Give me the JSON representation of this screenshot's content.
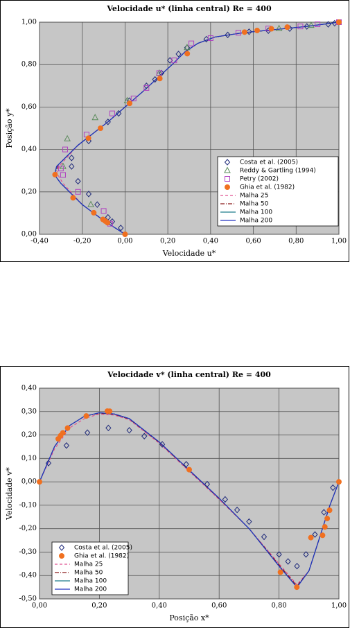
{
  "chart_data": [
    {
      "type": "scatter",
      "title": "Velocidade u* (linha central) Re = 400",
      "x_label": "Velocidade u*",
      "y_label": "Posição y*",
      "xlim": [
        -0.4,
        1.0
      ],
      "ylim": [
        0,
        1.0
      ],
      "grid": true,
      "legend": "lower right",
      "xticks": [
        {
          "value": -0.4,
          "label": "-0,40"
        },
        {
          "value": -0.2,
          "label": "-0,20"
        },
        {
          "value": 0,
          "label": "0,00"
        },
        {
          "value": 0.2,
          "label": "0,20"
        },
        {
          "value": 0.4,
          "label": "0,40"
        },
        {
          "value": 0.6,
          "label": "0,60"
        },
        {
          "value": 0.8,
          "label": "0,80"
        },
        {
          "value": 1.0,
          "label": "1,00"
        }
      ],
      "yticks": [
        {
          "value": 0,
          "label": "0,00"
        },
        {
          "value": 0.2,
          "label": "0,20"
        },
        {
          "value": 0.4,
          "label": "0,40"
        },
        {
          "value": 0.6,
          "label": "0,60"
        },
        {
          "value": 0.8,
          "label": "0,80"
        },
        {
          "value": 1.0,
          "label": "1,00"
        }
      ],
      "series": [
        {
          "name": "Costa et al. (2005)",
          "marker": "diamond",
          "color": "#1f2a7a",
          "x": [
            -0.02,
            -0.06,
            -0.08,
            -0.13,
            -0.17,
            -0.22,
            -0.25,
            -0.25,
            -0.17,
            -0.08,
            -0.03,
            0.02,
            0.1,
            0.14,
            0.17,
            0.21,
            0.25,
            0.29,
            0.38,
            0.48,
            0.58,
            0.67,
            0.77,
            0.85,
            0.95,
            0.98
          ],
          "values": [
            0.03,
            0.06,
            0.08,
            0.14,
            0.19,
            0.25,
            0.32,
            0.36,
            0.44,
            0.53,
            0.57,
            0.63,
            0.7,
            0.73,
            0.76,
            0.82,
            0.85,
            0.88,
            0.92,
            0.94,
            0.955,
            0.96,
            0.97,
            0.98,
            0.99,
            0.995
          ]
        },
        {
          "name": "Reddy & Gartling (1994)",
          "marker": "triangle",
          "color": "#5a8a5a",
          "x": [
            -0.16,
            -0.29,
            -0.27,
            -0.14,
            0.01,
            0.16,
            0.29,
            0.72,
            0.87
          ],
          "values": [
            0.14,
            0.32,
            0.45,
            0.55,
            0.63,
            0.76,
            0.88,
            0.97,
            0.985
          ]
        },
        {
          "name": "Petry (2002)",
          "marker": "square",
          "color": "#b040c0",
          "x": [
            -0.07,
            -0.1,
            -0.22,
            -0.29,
            -0.3,
            -0.28,
            -0.18,
            -0.06,
            0.04,
            0.1,
            0.16,
            0.23,
            0.31,
            0.4,
            0.53,
            0.67,
            0.82,
            0.9,
            1.0
          ],
          "values": [
            0.05,
            0.11,
            0.2,
            0.28,
            0.31,
            0.4,
            0.47,
            0.57,
            0.64,
            0.69,
            0.76,
            0.82,
            0.9,
            0.925,
            0.95,
            0.97,
            0.98,
            0.99,
            1.0
          ]
        },
        {
          "name": "Ghia et al. (1982)",
          "marker": "circle",
          "color": "#f07020",
          "x": [
            1.0,
            0.75837,
            0.68439,
            0.61756,
            0.55892,
            0.29093,
            0.16256,
            0.02135,
            -0.11477,
            -0.17119,
            -0.32726,
            -0.24299,
            -0.14612,
            -0.10338,
            -0.09266,
            -0.08186,
            0
          ],
          "values": [
            1.0,
            0.9766,
            0.9688,
            0.9609,
            0.9531,
            0.8516,
            0.7344,
            0.6172,
            0.5,
            0.4531,
            0.2813,
            0.1719,
            0.1016,
            0.0703,
            0.0625,
            0.0547,
            0
          ]
        },
        {
          "name": "Malha 25",
          "line": "dash",
          "color": "#e05090",
          "x": [
            0,
            -0.1,
            -0.2,
            -0.29,
            -0.32,
            -0.3,
            -0.22,
            -0.08,
            0.08,
            0.22,
            0.28,
            0.34,
            0.42,
            0.55,
            0.7,
            0.85,
            1.0
          ],
          "values": [
            0,
            0.065,
            0.14,
            0.24,
            0.29,
            0.33,
            0.42,
            0.53,
            0.67,
            0.8,
            0.86,
            0.9,
            0.93,
            0.95,
            0.965,
            0.98,
            1.0
          ]
        },
        {
          "name": "Malha 50",
          "line": "dashdot",
          "color": "#8b1a1a",
          "x": [
            0,
            -0.1,
            -0.2,
            -0.3,
            -0.33,
            -0.31,
            -0.22,
            -0.08,
            0.08,
            0.22,
            0.28,
            0.34,
            0.42,
            0.55,
            0.7,
            0.85,
            1.0
          ],
          "values": [
            0,
            0.065,
            0.14,
            0.24,
            0.28,
            0.33,
            0.42,
            0.53,
            0.67,
            0.8,
            0.86,
            0.9,
            0.93,
            0.95,
            0.965,
            0.98,
            1.0
          ]
        },
        {
          "name": "Malha 100",
          "line": "solid",
          "color": "#1a7a8a",
          "x": [
            0,
            -0.1,
            -0.2,
            -0.3,
            -0.33,
            -0.32,
            -0.22,
            -0.08,
            0.08,
            0.22,
            0.28,
            0.34,
            0.42,
            0.55,
            0.7,
            0.85,
            1.0
          ],
          "values": [
            0,
            0.065,
            0.14,
            0.24,
            0.28,
            0.32,
            0.42,
            0.53,
            0.67,
            0.8,
            0.86,
            0.9,
            0.93,
            0.95,
            0.965,
            0.98,
            1.0
          ]
        },
        {
          "name": "Malha 200",
          "line": "solid",
          "color": "#2030c0",
          "x": [
            0,
            -0.1,
            -0.2,
            -0.3,
            -0.33,
            -0.32,
            -0.22,
            -0.08,
            0.08,
            0.22,
            0.28,
            0.34,
            0.42,
            0.55,
            0.7,
            0.85,
            1.0
          ],
          "values": [
            0,
            0.065,
            0.14,
            0.24,
            0.28,
            0.32,
            0.42,
            0.53,
            0.67,
            0.8,
            0.86,
            0.9,
            0.93,
            0.95,
            0.965,
            0.98,
            1.0
          ]
        }
      ]
    },
    {
      "type": "scatter",
      "title": "Velocidade v* (linha central) Re = 400",
      "x_label": "Posição x*",
      "y_label": "Velocidade v*",
      "xlim": [
        0,
        1.0
      ],
      "ylim": [
        -0.5,
        0.4
      ],
      "grid": true,
      "legend": "lower left",
      "xticks": [
        {
          "value": 0,
          "label": "0,00"
        },
        {
          "value": 0.2,
          "label": "0,20"
        },
        {
          "value": 0.4,
          "label": "0,40"
        },
        {
          "value": 0.6,
          "label": "0,60"
        },
        {
          "value": 0.8,
          "label": "0,80"
        },
        {
          "value": 1.0,
          "label": "1,00"
        }
      ],
      "yticks": [
        {
          "value": 0.4,
          "label": "0,40"
        },
        {
          "value": 0.3,
          "label": "0,30"
        },
        {
          "value": 0.2,
          "label": "0,20"
        },
        {
          "value": 0.1,
          "label": "0,10"
        },
        {
          "value": 0,
          "label": "0,00"
        },
        {
          "value": -0.1,
          "label": "-0,10"
        },
        {
          "value": -0.2,
          "label": "-0,20"
        },
        {
          "value": -0.3,
          "label": "-0,30"
        },
        {
          "value": -0.4,
          "label": "-0,40"
        },
        {
          "value": -0.5,
          "label": "-0,50"
        }
      ],
      "series": [
        {
          "name": "Costa et al. (2005)",
          "marker": "diamond",
          "color": "#1f2a7a",
          "x": [
            0.03,
            0.09,
            0.16,
            0.23,
            0.3,
            0.35,
            0.41,
            0.49,
            0.56,
            0.62,
            0.66,
            0.7,
            0.75,
            0.8,
            0.83,
            0.86,
            0.89,
            0.92,
            0.95,
            0.98
          ],
          "values": [
            0.08,
            0.155,
            0.21,
            0.23,
            0.22,
            0.195,
            0.16,
            0.075,
            -0.01,
            -0.075,
            -0.12,
            -0.17,
            -0.235,
            -0.31,
            -0.34,
            -0.36,
            -0.31,
            -0.225,
            -0.13,
            -0.025
          ]
        },
        {
          "name": "Ghia et al. (1982)",
          "marker": "circle",
          "color": "#f07020",
          "x": [
            1.0,
            0.9688,
            0.9609,
            0.9531,
            0.9453,
            0.9063,
            0.8594,
            0.8047,
            0.5,
            0.2344,
            0.2266,
            0.1563,
            0.0938,
            0.0781,
            0.0703,
            0.0625,
            0
          ],
          "values": [
            0,
            -0.12146,
            -0.15663,
            -0.19254,
            -0.22847,
            -0.23827,
            -0.44993,
            -0.38598,
            0.05186,
            0.30174,
            0.30203,
            0.28124,
            0.22965,
            0.2092,
            0.19713,
            0.1836,
            0
          ]
        },
        {
          "name": "Malha 25",
          "line": "dash",
          "color": "#e05090",
          "x": [
            0,
            0.05,
            0.1,
            0.15,
            0.2,
            0.25,
            0.3,
            0.4,
            0.5,
            0.6,
            0.7,
            0.8,
            0.86,
            0.9,
            0.94,
            0.97,
            1.0
          ],
          "values": [
            0,
            0.14,
            0.23,
            0.27,
            0.29,
            0.285,
            0.265,
            0.165,
            0.045,
            -0.075,
            -0.2,
            -0.35,
            -0.44,
            -0.38,
            -0.22,
            -0.1,
            0
          ]
        },
        {
          "name": "Malha 50",
          "line": "dashdot",
          "color": "#8b1a1a",
          "x": [
            0,
            0.05,
            0.1,
            0.15,
            0.2,
            0.25,
            0.3,
            0.4,
            0.5,
            0.6,
            0.7,
            0.8,
            0.86,
            0.9,
            0.94,
            0.97,
            1.0
          ],
          "values": [
            0,
            0.15,
            0.24,
            0.28,
            0.293,
            0.288,
            0.268,
            0.168,
            0.048,
            -0.072,
            -0.2,
            -0.355,
            -0.445,
            -0.38,
            -0.22,
            -0.1,
            0
          ]
        },
        {
          "name": "Malha 100",
          "line": "solid",
          "color": "#1a7a8a",
          "x": [
            0,
            0.05,
            0.1,
            0.15,
            0.2,
            0.25,
            0.3,
            0.4,
            0.5,
            0.6,
            0.7,
            0.8,
            0.86,
            0.9,
            0.94,
            0.97,
            1.0
          ],
          "values": [
            0,
            0.15,
            0.24,
            0.28,
            0.295,
            0.29,
            0.27,
            0.17,
            0.05,
            -0.07,
            -0.2,
            -0.36,
            -0.45,
            -0.38,
            -0.22,
            -0.1,
            0
          ]
        },
        {
          "name": "Malha 200",
          "line": "solid",
          "color": "#2030c0",
          "x": [
            0,
            0.05,
            0.1,
            0.15,
            0.2,
            0.25,
            0.3,
            0.4,
            0.5,
            0.6,
            0.7,
            0.8,
            0.86,
            0.9,
            0.94,
            0.97,
            1.0
          ],
          "values": [
            0,
            0.15,
            0.24,
            0.28,
            0.295,
            0.29,
            0.27,
            0.17,
            0.05,
            -0.07,
            -0.2,
            -0.36,
            -0.45,
            -0.38,
            -0.22,
            -0.1,
            0
          ]
        }
      ]
    }
  ]
}
